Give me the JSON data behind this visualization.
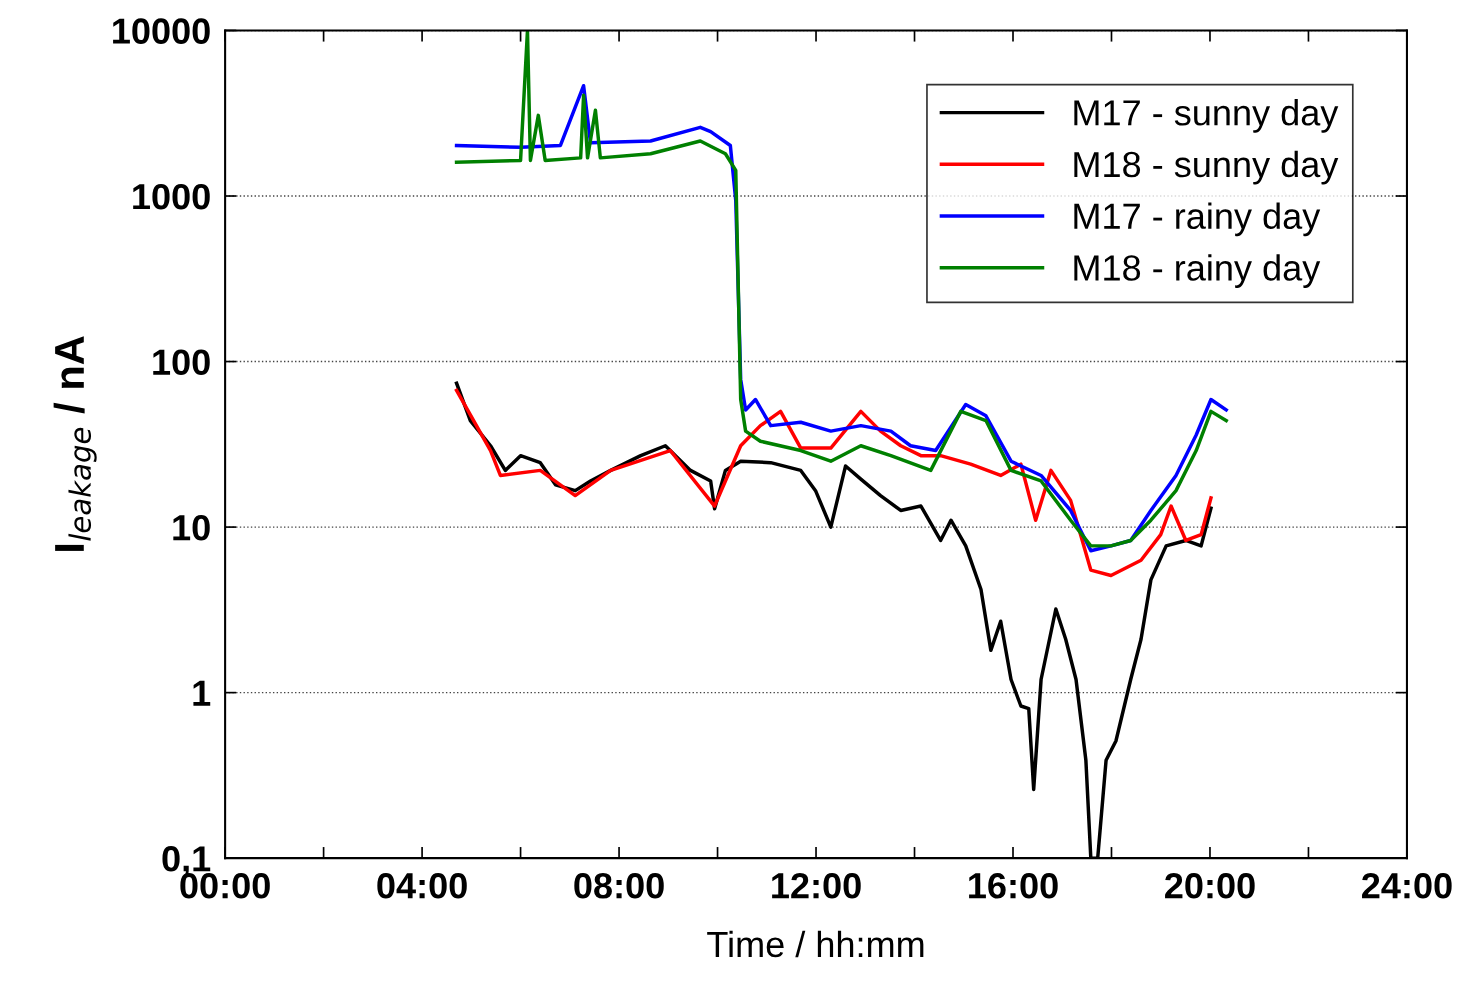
{
  "chart_data": {
    "type": "line",
    "xlabel": "Time / hh:mm",
    "ylabel": "I$_{leakage}$ / nA",
    "log": "y",
    "grid": "y",
    "legend": "top right",
    "line_style": "solid",
    "marker": "none",
    "xlim": [
      0,
      24
    ],
    "ylim": [
      0.1,
      10000
    ],
    "xticks": [
      {
        "value": 0,
        "label": "00:00"
      },
      {
        "value": 2,
        "label": null
      },
      {
        "value": 4,
        "label": "04:00"
      },
      {
        "value": 6,
        "label": null
      },
      {
        "value": 8,
        "label": "08:00"
      },
      {
        "value": 10,
        "label": null
      },
      {
        "value": 12,
        "label": "12:00"
      },
      {
        "value": 14,
        "label": null
      },
      {
        "value": 16,
        "label": "16:00"
      },
      {
        "value": 18,
        "label": null
      },
      {
        "value": 20,
        "label": "20:00"
      },
      {
        "value": 22,
        "label": null
      },
      {
        "value": 24,
        "label": "24:00"
      }
    ],
    "yticks": [
      {
        "value": 0.1,
        "label": "0,1"
      },
      1,
      10,
      100,
      1000,
      10000
    ],
    "series": [
      {
        "name": "M17 - sunny day",
        "color": "#000000",
        "x": [
          4.7,
          4.98,
          5.39,
          5.69,
          6.0,
          6.4,
          6.71,
          7.11,
          7.42,
          7.83,
          8.44,
          8.94,
          9.45,
          9.86,
          9.94,
          10.16,
          10.47,
          11.08,
          11.69,
          11.99,
          12.3,
          12.6,
          12.91,
          13.31,
          13.72,
          14.13,
          14.53,
          14.74,
          15.04,
          15.35,
          15.55,
          15.75,
          15.96,
          16.16,
          16.32,
          16.42,
          16.57,
          16.87,
          17.07,
          17.28,
          17.48,
          17.58,
          17.72,
          17.89,
          18.09,
          18.39,
          18.6,
          18.8,
          19.11,
          19.51,
          19.82,
          20.02
        ],
        "values": [
          74,
          44,
          31,
          22,
          27,
          24.5,
          18,
          16.6,
          19,
          22,
          27,
          31,
          22,
          19,
          12.9,
          22,
          25,
          24.5,
          22,
          16.6,
          10,
          23.4,
          19.5,
          15.5,
          12.6,
          13.4,
          8.3,
          11,
          7.7,
          4.2,
          1.8,
          2.7,
          1.2,
          0.83,
          0.8,
          0.26,
          1.2,
          3.2,
          2.1,
          1.2,
          0.39,
          0.1,
          0.1,
          0.39,
          0.51,
          1.2,
          2.1,
          4.8,
          7.7,
          8.3,
          7.7,
          13
        ]
      },
      {
        "name": "M18 - sunny day",
        "color": "#ff0000",
        "x": [
          4.7,
          5.39,
          5.59,
          6.4,
          7.11,
          7.83,
          9.04,
          9.94,
          10.47,
          10.87,
          11.28,
          11.69,
          12.3,
          12.91,
          13.31,
          13.72,
          14.13,
          14.53,
          15.14,
          15.75,
          16.16,
          16.46,
          16.77,
          17.17,
          17.58,
          17.99,
          18.6,
          19.0,
          19.21,
          19.51,
          19.82,
          20.02
        ],
        "values": [
          67,
          29,
          20.5,
          22,
          15.5,
          22,
          29,
          13.4,
          31,
          41,
          50,
          30,
          30,
          50,
          38,
          31,
          27,
          27,
          24,
          20.5,
          24,
          11,
          22,
          14.5,
          5.5,
          5.1,
          6.3,
          9,
          13.4,
          8.3,
          9,
          15
        ]
      },
      {
        "name": "M17 - rainy day",
        "color": "#0000ff",
        "x": [
          4.7,
          6.0,
          6.81,
          7.28,
          7.42,
          8.64,
          9.65,
          9.86,
          10.26,
          10.37,
          10.47,
          10.57,
          10.77,
          11.08,
          11.69,
          12.3,
          12.91,
          13.52,
          13.92,
          14.43,
          15.04,
          15.45,
          15.96,
          16.57,
          17.17,
          17.58,
          17.99,
          18.39,
          18.8,
          19.31,
          19.72,
          20.02,
          20.33
        ],
        "values": [
          2020,
          1970,
          2020,
          4640,
          2100,
          2150,
          2600,
          2450,
          2020,
          940,
          78,
          51,
          59,
          41,
          43,
          38,
          41,
          38,
          31,
          29,
          55,
          47,
          25,
          20.5,
          12.6,
          7.2,
          7.7,
          8.3,
          12.6,
          20.5,
          36,
          59,
          51
        ]
      },
      {
        "name": "M18 - rainy day",
        "color": "#008000",
        "x": [
          4.7,
          6.0,
          6.14,
          6.2,
          6.36,
          6.5,
          7.22,
          7.28,
          7.36,
          7.52,
          7.62,
          8.64,
          9.65,
          10.16,
          10.37,
          10.47,
          10.57,
          10.87,
          11.69,
          12.3,
          12.91,
          13.52,
          14.33,
          14.94,
          15.45,
          15.96,
          16.57,
          17.17,
          17.58,
          17.99,
          18.39,
          18.8,
          19.31,
          19.72,
          20.02,
          20.33
        ],
        "values": [
          1600,
          1640,
          10000,
          1640,
          3070,
          1640,
          1700,
          4060,
          1700,
          3300,
          1700,
          1800,
          2150,
          1800,
          1430,
          59,
          38,
          33,
          29,
          25,
          31,
          27,
          22,
          50,
          44,
          22,
          19,
          11,
          7.7,
          7.7,
          8.3,
          11,
          16.6,
          29,
          50,
          44
        ]
      }
    ]
  }
}
